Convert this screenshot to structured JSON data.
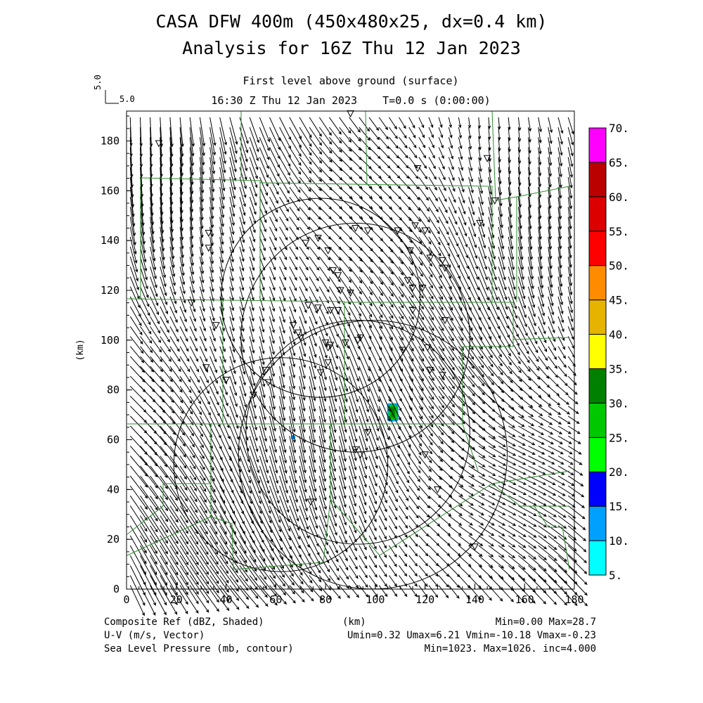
{
  "header": {
    "title_line1": "CASA DFW 400m (450x480x25, dx=0.4 km)",
    "title_line2": "Analysis for 16Z Thu 12 Jan 2023",
    "subtitle": "First level above ground (surface)",
    "time_line": "16:30 Z Thu 12 Jan 2023    T=0.0 s (0:00:00)",
    "ref_vector_label": "5.0",
    "ref_vector_value": "5.0"
  },
  "footer": {
    "field1_name": "Composite Ref (dBZ, Shaded)",
    "field1_stats": "Min=0.00 Max=28.7",
    "field2_name": "U-V (m/s, Vector)",
    "field2_stats": "Umin=0.32 Umax=6.21 Vmin=-10.18 Vmax=-0.23",
    "field3_name": "Sea Level Pressure (mb, contour)",
    "field3_stats": "Min=1023. Max=1026. inc=4.000",
    "x_unit": "(km)"
  },
  "chart_data": {
    "type": "vector-field",
    "xlabel": "(km)",
    "ylabel": "(km)",
    "xlim": [
      0,
      180
    ],
    "ylim": [
      0,
      192
    ],
    "xticks": [
      0,
      20,
      40,
      60,
      80,
      100,
      120,
      140,
      160,
      180
    ],
    "yticks": [
      0,
      20,
      40,
      60,
      80,
      100,
      120,
      140,
      160,
      180
    ],
    "colorbar": {
      "labels": [
        "5.",
        "10.",
        "15.",
        "20.",
        "25.",
        "30.",
        "35.",
        "40.",
        "45.",
        "50.",
        "55.",
        "60.",
        "65.",
        "70."
      ],
      "colors": [
        "#00ffff",
        "#00a0ff",
        "#0000ff",
        "#00ff00",
        "#00c800",
        "#008000",
        "#ffff00",
        "#e6b400",
        "#ff8c00",
        "#ff0000",
        "#dc0000",
        "#bb0000",
        "#ff00ff"
      ]
    },
    "radar_rings": [
      {
        "cx": 78,
        "cy": 117,
        "r": 40
      },
      {
        "cx": 92,
        "cy": 101,
        "r": 46
      },
      {
        "cx": 93,
        "cy": 63,
        "r": 45
      },
      {
        "cx": 99,
        "cy": 54,
        "r": 54
      },
      {
        "cx": 62,
        "cy": 50,
        "r": 43
      }
    ],
    "reflectivity_cells": [
      {
        "x": 107,
        "y": 71,
        "dbz": 28.7
      },
      {
        "x": 67,
        "y": 61,
        "dbz": 10
      }
    ],
    "wind": {
      "u_mean": 3.2,
      "v_mean": -6.0,
      "u_range": [
        0.32,
        6.21
      ],
      "v_range": [
        -10.18,
        -0.23
      ]
    },
    "stations": [
      [
        13,
        179
      ],
      [
        33,
        143
      ],
      [
        33,
        137
      ],
      [
        26,
        115
      ],
      [
        36,
        106
      ],
      [
        32,
        89
      ],
      [
        40,
        84
      ],
      [
        56,
        88
      ],
      [
        57,
        83
      ],
      [
        51,
        78
      ],
      [
        72,
        139
      ],
      [
        77,
        141
      ],
      [
        81,
        136
      ],
      [
        83,
        128
      ],
      [
        85,
        126
      ],
      [
        73,
        114
      ],
      [
        77,
        113
      ],
      [
        82,
        112
      ],
      [
        85,
        112
      ],
      [
        86,
        120
      ],
      [
        90,
        119
      ],
      [
        92,
        145
      ],
      [
        97,
        144
      ],
      [
        109,
        144
      ],
      [
        116,
        146
      ],
      [
        114,
        136
      ],
      [
        120,
        144
      ],
      [
        122,
        133
      ],
      [
        127,
        132
      ],
      [
        128,
        129
      ],
      [
        113,
        124
      ],
      [
        115,
        121
      ],
      [
        119,
        121
      ],
      [
        115,
        112
      ],
      [
        128,
        108
      ],
      [
        111,
        96
      ],
      [
        121,
        97
      ],
      [
        122,
        88
      ],
      [
        127,
        86
      ],
      [
        67,
        106
      ],
      [
        69,
        103
      ],
      [
        70,
        101
      ],
      [
        80,
        99
      ],
      [
        81,
        97
      ],
      [
        82,
        98
      ],
      [
        88,
        99
      ],
      [
        94,
        101
      ],
      [
        93,
        100
      ],
      [
        81,
        91
      ],
      [
        78,
        87
      ],
      [
        97,
        63
      ],
      [
        92,
        56
      ],
      [
        94,
        54
      ],
      [
        120,
        54
      ],
      [
        125,
        40
      ],
      [
        140,
        17
      ],
      [
        74,
        35
      ],
      [
        90,
        191
      ],
      [
        117,
        169
      ],
      [
        145,
        173
      ],
      [
        142,
        147
      ],
      [
        148,
        156
      ]
    ]
  }
}
